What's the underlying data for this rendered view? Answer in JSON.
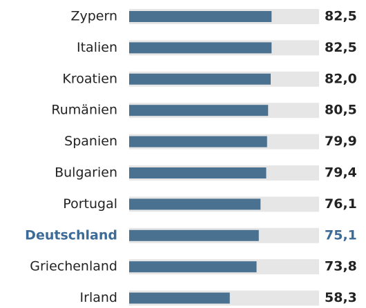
{
  "chart_data": {
    "type": "bar",
    "orientation": "horizontal",
    "categories": [
      "Zypern",
      "Italien",
      "Kroatien",
      "Rumänien",
      "Spanien",
      "Bulgarien",
      "Portugal",
      "Deutschland",
      "Griechenland",
      "Irland"
    ],
    "values": [
      82.5,
      82.5,
      82.0,
      80.5,
      79.9,
      79.4,
      76.1,
      75.1,
      73.8,
      58.3
    ],
    "value_labels": [
      "82,5",
      "82,5",
      "82,0",
      "80,5",
      "79,9",
      "79,4",
      "76,1",
      "75,1",
      "73,8",
      "58,3"
    ],
    "color": "#4a7290",
    "track_color": "#e6e6e6",
    "highlight": 7,
    "highlight_color": "#3d6b98",
    "xlim": [
      0,
      110
    ]
  }
}
